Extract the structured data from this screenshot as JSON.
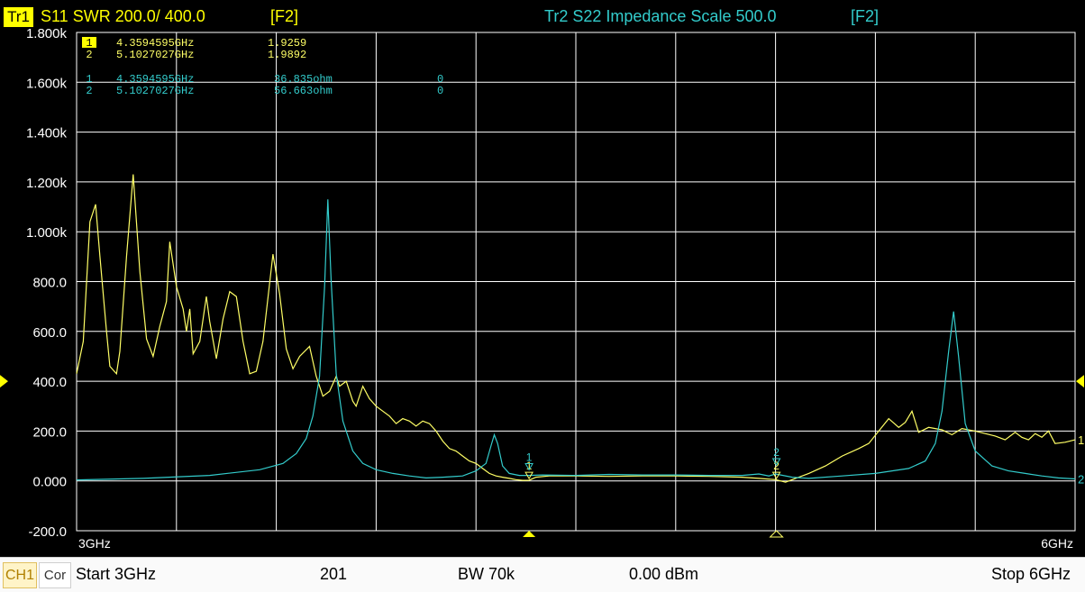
{
  "trace1_header": {
    "id": "Tr1",
    "text": "S11 SWR 200.0/ 400.0",
    "key": "[F2]",
    "color": "#ffff00"
  },
  "trace2_header": {
    "text": "Tr2 S22 Impedance Scale 500.0",
    "key": "[F2]",
    "color": "#33cccc"
  },
  "marker_readouts": {
    "tr1": [
      {
        "num": "1",
        "freq": "4.3594595GHz",
        "value": "1.9259"
      },
      {
        "num": "2",
        "freq": "5.1027027GHz",
        "value": "1.9892"
      }
    ],
    "tr2": [
      {
        "num": "1",
        "freq": "4.3594595GHz",
        "value": "36.835ohm",
        "extra": "0"
      },
      {
        "num": "2",
        "freq": "5.1027027GHz",
        "value": "56.663ohm",
        "extra": "0"
      }
    ]
  },
  "chart_data": {
    "type": "line",
    "x_unit": "GHz",
    "xlim": [
      3,
      6
    ],
    "ylim": [
      -200,
      1800
    ],
    "grid": true,
    "background": "#000000",
    "grid_color": "#ffffff",
    "yticks": [
      {
        "v": 1800,
        "label": "1.800k"
      },
      {
        "v": 1600,
        "label": "1.600k"
      },
      {
        "v": 1400,
        "label": "1.400k"
      },
      {
        "v": 1200,
        "label": "1.200k"
      },
      {
        "v": 1000,
        "label": "1.000k"
      },
      {
        "v": 800,
        "label": "800.0"
      },
      {
        "v": 600,
        "label": "600.0"
      },
      {
        "v": 400,
        "label": "400.0"
      },
      {
        "v": 200,
        "label": "200.0"
      },
      {
        "v": 0,
        "label": "0.000"
      },
      {
        "v": -200,
        "label": "-200.0"
      }
    ],
    "x_start_label": "3GHz",
    "x_stop_label": "6GHz",
    "reference_marker_value": 400,
    "series": [
      {
        "color": "#ffff66",
        "end_label": "1",
        "points": [
          [
            3.0,
            430
          ],
          [
            3.02,
            560
          ],
          [
            3.04,
            1040
          ],
          [
            3.057,
            1110
          ],
          [
            3.07,
            900
          ],
          [
            3.09,
            600
          ],
          [
            3.1,
            460
          ],
          [
            3.12,
            430
          ],
          [
            3.13,
            520
          ],
          [
            3.15,
            900
          ],
          [
            3.17,
            1230
          ],
          [
            3.19,
            840
          ],
          [
            3.21,
            570
          ],
          [
            3.23,
            500
          ],
          [
            3.25,
            620
          ],
          [
            3.27,
            720
          ],
          [
            3.28,
            960
          ],
          [
            3.3,
            780
          ],
          [
            3.32,
            690
          ],
          [
            3.33,
            600
          ],
          [
            3.34,
            690
          ],
          [
            3.35,
            510
          ],
          [
            3.37,
            560
          ],
          [
            3.39,
            740
          ],
          [
            3.4,
            640
          ],
          [
            3.42,
            490
          ],
          [
            3.44,
            650
          ],
          [
            3.46,
            760
          ],
          [
            3.48,
            740
          ],
          [
            3.5,
            560
          ],
          [
            3.52,
            430
          ],
          [
            3.54,
            440
          ],
          [
            3.56,
            560
          ],
          [
            3.59,
            910
          ],
          [
            3.61,
            750
          ],
          [
            3.63,
            530
          ],
          [
            3.65,
            450
          ],
          [
            3.67,
            500
          ],
          [
            3.7,
            540
          ],
          [
            3.72,
            420
          ],
          [
            3.74,
            340
          ],
          [
            3.76,
            360
          ],
          [
            3.78,
            420
          ],
          [
            3.79,
            380
          ],
          [
            3.81,
            400
          ],
          [
            3.83,
            320
          ],
          [
            3.84,
            300
          ],
          [
            3.86,
            380
          ],
          [
            3.88,
            330
          ],
          [
            3.9,
            300
          ],
          [
            3.92,
            280
          ],
          [
            3.94,
            260
          ],
          [
            3.96,
            230
          ],
          [
            3.98,
            250
          ],
          [
            4.0,
            240
          ],
          [
            4.02,
            220
          ],
          [
            4.04,
            240
          ],
          [
            4.06,
            230
          ],
          [
            4.08,
            200
          ],
          [
            4.1,
            160
          ],
          [
            4.12,
            130
          ],
          [
            4.14,
            120
          ],
          [
            4.16,
            100
          ],
          [
            4.18,
            80
          ],
          [
            4.2,
            70
          ],
          [
            4.22,
            50
          ],
          [
            4.24,
            30
          ],
          [
            4.26,
            20
          ],
          [
            4.28,
            15
          ],
          [
            4.3,
            10
          ],
          [
            4.32,
            5
          ],
          [
            4.34,
            2
          ],
          [
            4.359,
            2
          ],
          [
            4.38,
            15
          ],
          [
            4.42,
            20
          ],
          [
            4.5,
            20
          ],
          [
            4.6,
            18
          ],
          [
            4.7,
            20
          ],
          [
            4.8,
            20
          ],
          [
            4.9,
            18
          ],
          [
            5.0,
            15
          ],
          [
            5.05,
            10
          ],
          [
            5.1,
            5
          ],
          [
            5.13,
            -5
          ],
          [
            5.16,
            10
          ],
          [
            5.2,
            30
          ],
          [
            5.25,
            60
          ],
          [
            5.3,
            100
          ],
          [
            5.35,
            130
          ],
          [
            5.38,
            150
          ],
          [
            5.41,
            200
          ],
          [
            5.44,
            250
          ],
          [
            5.47,
            215
          ],
          [
            5.49,
            235
          ],
          [
            5.51,
            280
          ],
          [
            5.53,
            195
          ],
          [
            5.56,
            215
          ],
          [
            5.6,
            205
          ],
          [
            5.63,
            185
          ],
          [
            5.66,
            210
          ],
          [
            5.7,
            200
          ],
          [
            5.73,
            190
          ],
          [
            5.76,
            180
          ],
          [
            5.79,
            165
          ],
          [
            5.82,
            195
          ],
          [
            5.84,
            175
          ],
          [
            5.86,
            165
          ],
          [
            5.88,
            190
          ],
          [
            5.9,
            175
          ],
          [
            5.92,
            200
          ],
          [
            5.94,
            150
          ],
          [
            5.97,
            155
          ],
          [
            6.0,
            165
          ]
        ]
      },
      {
        "color": "#33cccc",
        "end_label": "2",
        "points": [
          [
            3.0,
            4
          ],
          [
            3.2,
            10
          ],
          [
            3.4,
            22
          ],
          [
            3.55,
            45
          ],
          [
            3.62,
            70
          ],
          [
            3.66,
            110
          ],
          [
            3.69,
            170
          ],
          [
            3.71,
            260
          ],
          [
            3.73,
            420
          ],
          [
            3.745,
            780
          ],
          [
            3.755,
            1130
          ],
          [
            3.765,
            800
          ],
          [
            3.78,
            430
          ],
          [
            3.8,
            240
          ],
          [
            3.83,
            120
          ],
          [
            3.86,
            70
          ],
          [
            3.9,
            45
          ],
          [
            3.95,
            30
          ],
          [
            4.0,
            20
          ],
          [
            4.05,
            12
          ],
          [
            4.1,
            15
          ],
          [
            4.16,
            20
          ],
          [
            4.2,
            40
          ],
          [
            4.23,
            70
          ],
          [
            4.245,
            140
          ],
          [
            4.255,
            185
          ],
          [
            4.265,
            150
          ],
          [
            4.28,
            60
          ],
          [
            4.3,
            30
          ],
          [
            4.33,
            22
          ],
          [
            4.359,
            22
          ],
          [
            4.4,
            24
          ],
          [
            4.5,
            22
          ],
          [
            4.6,
            26
          ],
          [
            4.7,
            24
          ],
          [
            4.8,
            24
          ],
          [
            4.9,
            22
          ],
          [
            5.0,
            22
          ],
          [
            5.05,
            28
          ],
          [
            5.08,
            20
          ],
          [
            5.1,
            28
          ],
          [
            5.15,
            15
          ],
          [
            5.2,
            10
          ],
          [
            5.3,
            20
          ],
          [
            5.4,
            30
          ],
          [
            5.5,
            50
          ],
          [
            5.55,
            80
          ],
          [
            5.58,
            150
          ],
          [
            5.6,
            280
          ],
          [
            5.62,
            520
          ],
          [
            5.635,
            680
          ],
          [
            5.65,
            500
          ],
          [
            5.67,
            230
          ],
          [
            5.7,
            120
          ],
          [
            5.75,
            60
          ],
          [
            5.8,
            40
          ],
          [
            5.85,
            30
          ],
          [
            5.9,
            20
          ],
          [
            5.95,
            12
          ],
          [
            6.0,
            8
          ]
        ]
      }
    ],
    "markers": [
      {
        "label": "1",
        "x": 4.3594595,
        "y": 1.9259,
        "color": "#ffff66"
      },
      {
        "label": "1",
        "x": 4.3594595,
        "y": 36.835,
        "color": "#33cccc"
      },
      {
        "label": "2",
        "x": 5.1027027,
        "y": 1.9892,
        "color": "#ffff66"
      },
      {
        "label": "2",
        "x": 5.1027027,
        "y": 56.663,
        "color": "#33cccc"
      }
    ],
    "stimulus_markers": [
      {
        "x": 4.3594595,
        "style": "filled",
        "color": "#ffff00"
      },
      {
        "x": 5.1027027,
        "style": "outline",
        "color": "#ffff66"
      }
    ]
  },
  "statusbar": {
    "channel": "CH1",
    "correction": "Cor",
    "start": "Start 3GHz",
    "points": "201",
    "bandwidth": "BW 70k",
    "power": "0.00 dBm",
    "stop": "Stop 6GHz"
  }
}
